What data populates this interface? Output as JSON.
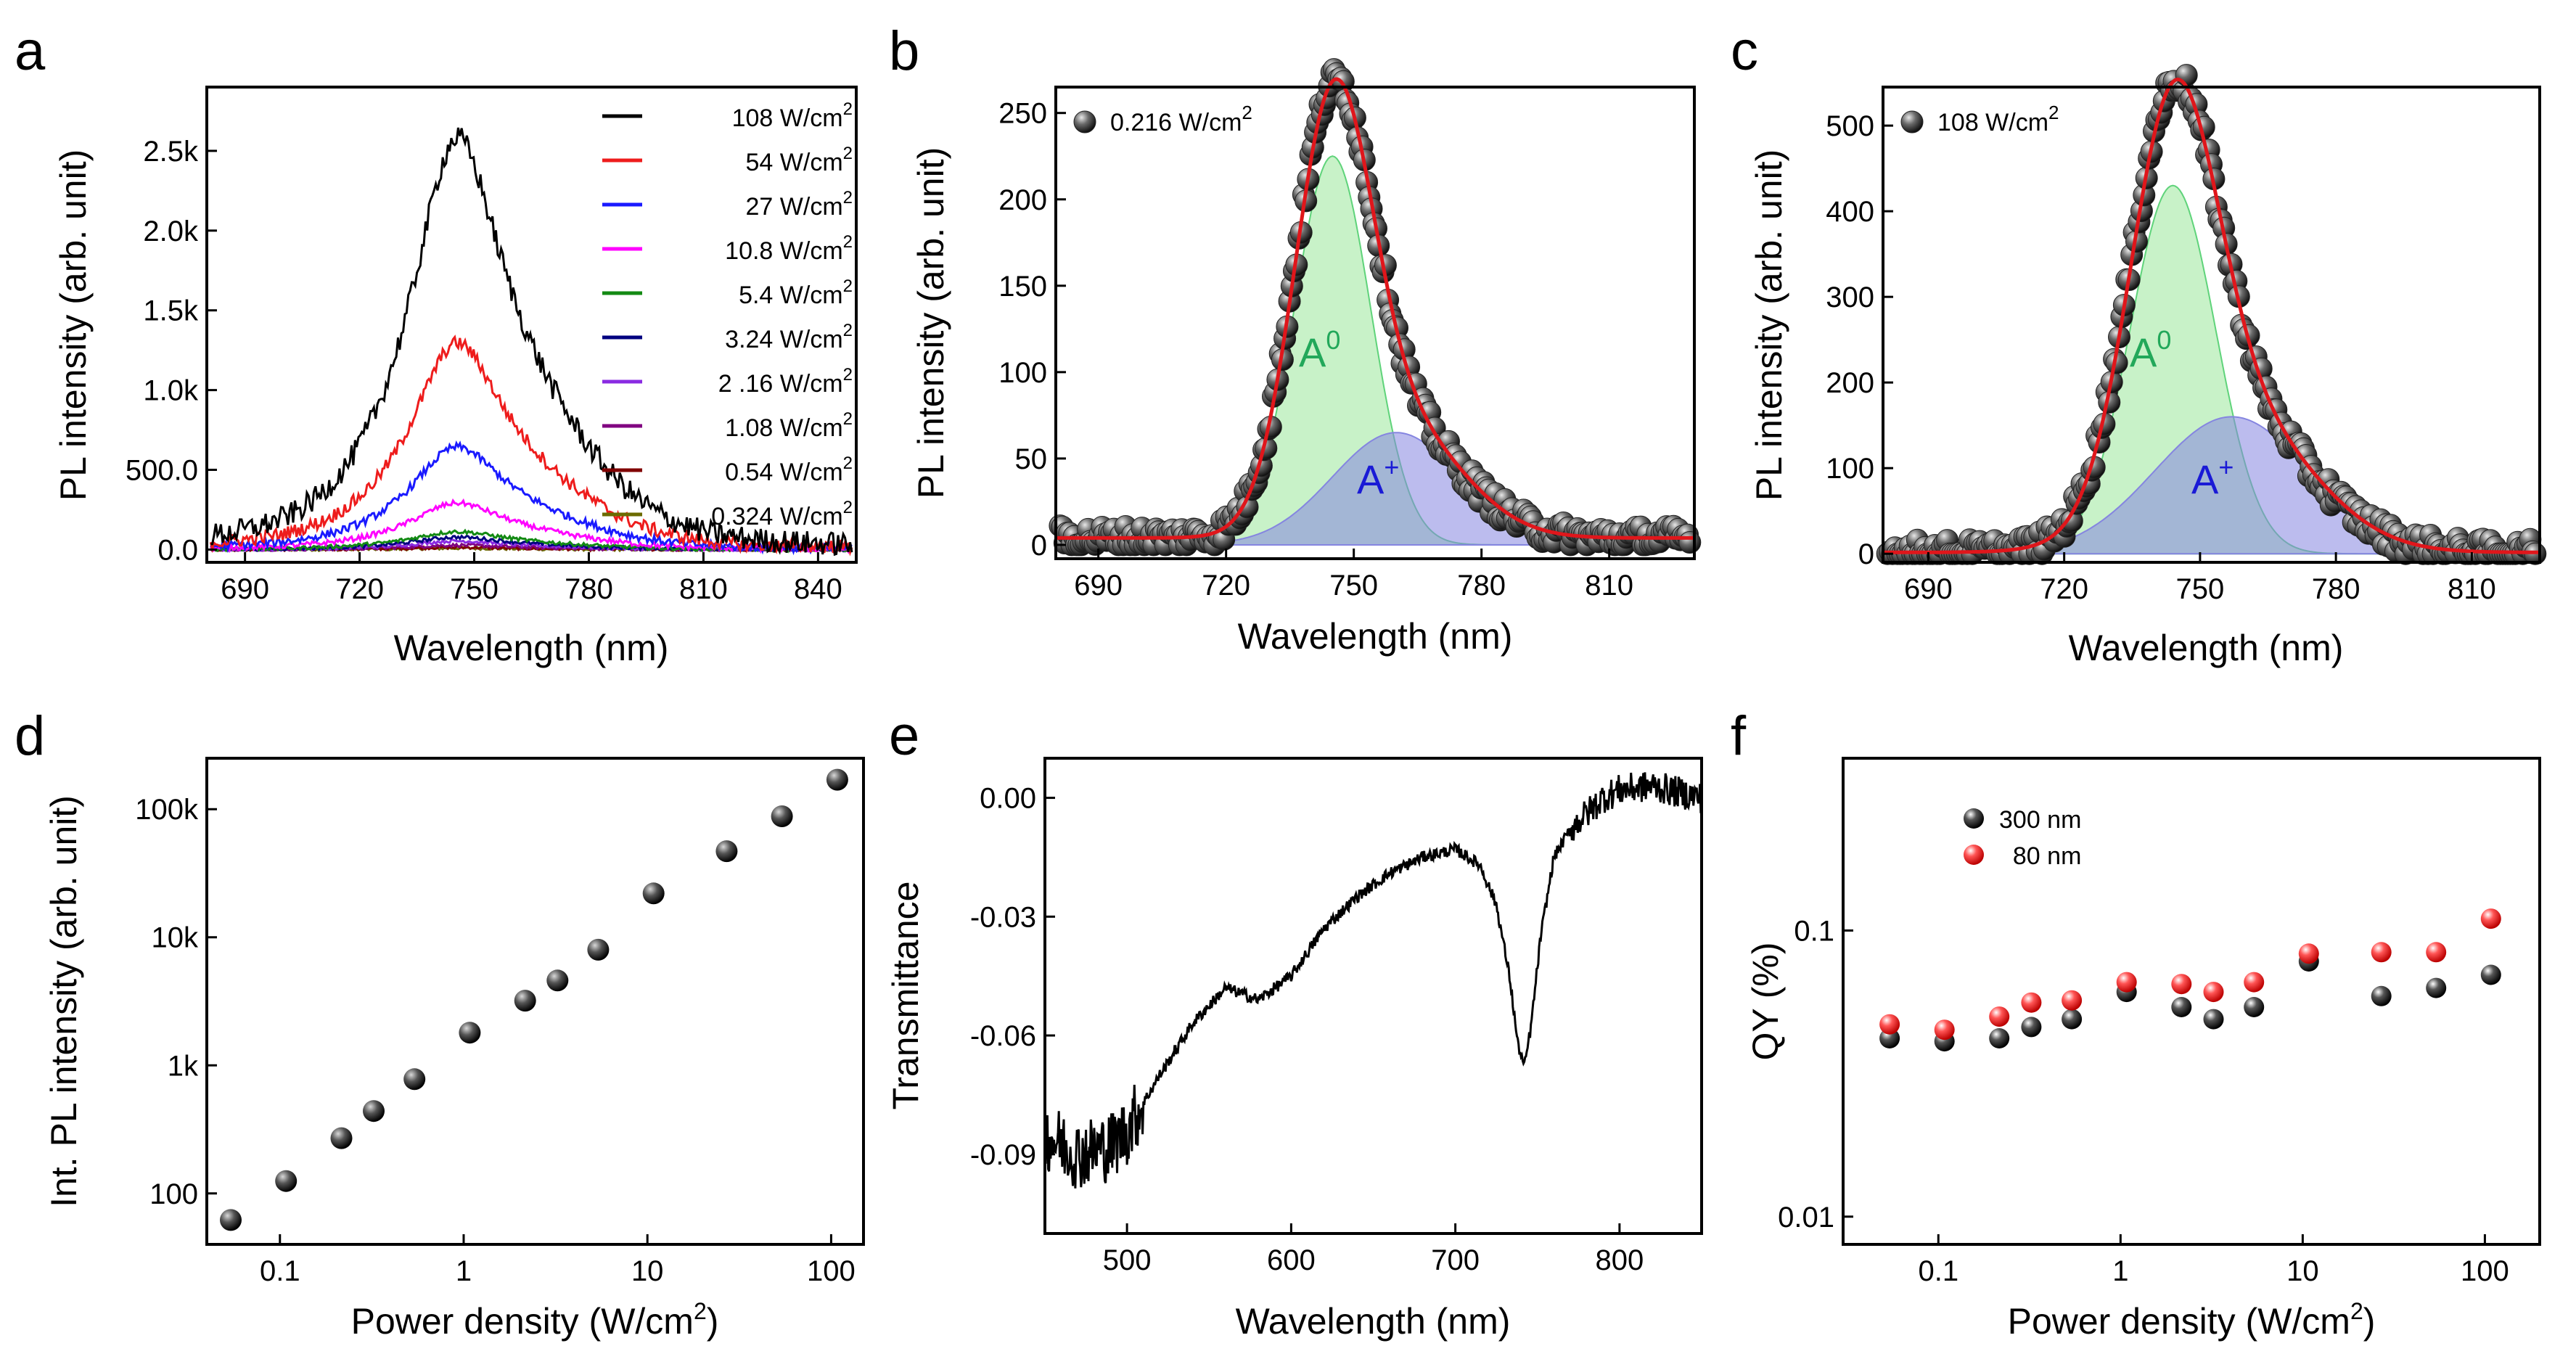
{
  "colors": {
    "axis": "#000000",
    "fit_total": "#e0161b",
    "fit_a0_fill": "#9be89b",
    "fit_a0_stroke": "#5fd37a",
    "fit_aplus_fill": "#8585e0",
    "label_a0": "#22a85a",
    "label_aplus": "#1a1ad6",
    "qy_300nm": "#000000",
    "qy_80nm": "#ee1c1c"
  },
  "chart_data": [
    {
      "panel": "a",
      "type": "line",
      "xlabel": "Wavelength (nm)",
      "ylabel": "PL intensity (arb. unit)",
      "xlim": [
        680,
        850
      ],
      "ylim": [
        -80,
        2900
      ],
      "x_ticks": [
        690,
        720,
        750,
        780,
        810,
        840
      ],
      "y_ticks": [
        {
          "value": 0,
          "label": "0.0"
        },
        {
          "value": 500,
          "label": "500.0"
        },
        {
          "value": 1000,
          "label": "1.0k"
        },
        {
          "value": 1500,
          "label": "1.5k"
        },
        {
          "value": 2000,
          "label": "2.0k"
        },
        {
          "value": 2500,
          "label": "2.5k"
        }
      ],
      "series": [
        {
          "name": "108",
          "unit": "W/cm",
          "sup": "2",
          "color": "#000000",
          "peak": 2650,
          "center": 745,
          "width": 15.5
        },
        {
          "name": "54",
          "unit": "W/cm",
          "sup": "2",
          "color": "#ee1c1c",
          "peak": 1330,
          "center": 745,
          "width": 15.5
        },
        {
          "name": "27",
          "unit": "W/cm",
          "sup": "2",
          "color": "#1a1aff",
          "peak": 660,
          "center": 745,
          "width": 15.5
        },
        {
          "name": "10.8",
          "unit": "W/cm",
          "sup": "2",
          "color": "#ff00ff",
          "peak": 300,
          "center": 745,
          "width": 15.5
        },
        {
          "name": "5.4",
          "unit": "W/cm",
          "sup": "2",
          "color": "#138a13",
          "peak": 115,
          "center": 745,
          "width": 15.5
        },
        {
          "name": "3.24",
          "unit": "W/cm",
          "sup": "2",
          "color": "#000080",
          "peak": 80,
          "center": 745,
          "width": 15.5
        },
        {
          "name": "2 .16",
          "unit": "W/cm",
          "sup": "2",
          "color": "#8a2be2",
          "peak": 55,
          "center": 745,
          "width": 15.5
        },
        {
          "name": "1.08",
          "unit": "W/cm",
          "sup": "2",
          "color": "#800080",
          "peak": 28,
          "center": 745,
          "width": 15.5
        },
        {
          "name": "0.54",
          "unit": "W/cm",
          "sup": "2",
          "color": "#800000",
          "peak": 14,
          "center": 745,
          "width": 15.5
        },
        {
          "name": "0.324",
          "unit": "W/cm",
          "sup": "2",
          "color": "#6b6b00",
          "peak": 9,
          "center": 745,
          "width": 15.5
        }
      ]
    },
    {
      "panel": "b",
      "type": "scatter",
      "xlabel": "Wavelength (nm)",
      "ylabel": "PL intensity (arb. unit)",
      "xlim": [
        680,
        830
      ],
      "ylim": [
        -8,
        265
      ],
      "x_ticks": [
        690,
        720,
        750,
        780,
        810
      ],
      "y_ticks": [
        {
          "value": 0,
          "label": "0"
        },
        {
          "value": 50,
          "label": "50"
        },
        {
          "value": 100,
          "label": "100"
        },
        {
          "value": 150,
          "label": "150"
        },
        {
          "value": 200,
          "label": "200"
        },
        {
          "value": 250,
          "label": "250"
        }
      ],
      "legend": {
        "label": "0.216 W/cm",
        "sup": "2"
      },
      "a0": {
        "label": "A",
        "sup": "0",
        "center": 745,
        "amplitude": 225,
        "width": 9.0
      },
      "aplus": {
        "label": "A",
        "sup": "+",
        "center": 760,
        "amplitude": 65,
        "width": 15.0
      },
      "baseline": 10
    },
    {
      "panel": "c",
      "type": "scatter",
      "xlabel": "Wavelength (nm)",
      "ylabel": "PL intensity (arb. unit)",
      "xlim": [
        680,
        825
      ],
      "ylim": [
        -10,
        545
      ],
      "x_ticks": [
        690,
        720,
        750,
        780,
        810
      ],
      "y_ticks": [
        {
          "value": 0,
          "label": "0"
        },
        {
          "value": 100,
          "label": "100"
        },
        {
          "value": 200,
          "label": "200"
        },
        {
          "value": 300,
          "label": "300"
        },
        {
          "value": 400,
          "label": "400"
        },
        {
          "value": 500,
          "label": "500"
        }
      ],
      "legend": {
        "label": "108 W/cm",
        "sup": "2"
      },
      "a0": {
        "label": "A",
        "sup": "0",
        "center": 744,
        "amplitude": 430,
        "width": 9.5
      },
      "aplus": {
        "label": "A",
        "sup": "+",
        "center": 757,
        "amplitude": 160,
        "width": 17.0
      },
      "baseline": 4
    },
    {
      "panel": "d",
      "type": "scatter",
      "scale": "log-log",
      "xlabel": "Power density (W/cm",
      "xlabel_sup": "2",
      "xlabel_end": ")",
      "ylabel": "Int. PL intensity (arb. unit)",
      "xlim": [
        0.04,
        150
      ],
      "ylim": [
        40,
        250000
      ],
      "x_ticks": [
        {
          "value": 0.1,
          "label": "0.1"
        },
        {
          "value": 1,
          "label": "1"
        },
        {
          "value": 10,
          "label": "10"
        },
        {
          "value": 100,
          "label": "100"
        }
      ],
      "y_ticks": [
        {
          "value": 100,
          "label": "100"
        },
        {
          "value": 1000,
          "label": "1k"
        },
        {
          "value": 10000,
          "label": "10k"
        },
        {
          "value": 100000,
          "label": "100k"
        }
      ],
      "x": [
        0.054,
        0.108,
        0.216,
        0.324,
        0.54,
        1.08,
        2.16,
        3.24,
        5.4,
        10.8,
        27,
        54,
        108
      ],
      "y": [
        62,
        125,
        270,
        440,
        780,
        1800,
        3200,
        4600,
        8000,
        22000,
        47000,
        88000,
        170000
      ]
    },
    {
      "panel": "e",
      "type": "line",
      "xlabel": "Wavelength (nm)",
      "ylabel": "Transmittance",
      "xlim": [
        450,
        850
      ],
      "ylim": [
        -0.11,
        0.01
      ],
      "x_ticks": [
        500,
        600,
        700,
        800
      ],
      "y_ticks": [
        {
          "value": 0,
          "label": "0.00"
        },
        {
          "value": -0.03,
          "label": "-0.03"
        },
        {
          "value": -0.06,
          "label": "-0.06"
        },
        {
          "value": -0.09,
          "label": "-0.09"
        }
      ],
      "x_anchor": [
        450,
        470,
        490,
        500,
        520,
        540,
        560,
        580,
        600,
        620,
        640,
        660,
        680,
        700,
        715,
        725,
        733,
        738,
        742,
        746,
        752,
        760,
        770,
        780,
        790,
        800,
        820,
        850
      ],
      "y_anchor": [
        -0.085,
        -0.09,
        -0.088,
        -0.084,
        -0.07,
        -0.057,
        -0.048,
        -0.051,
        -0.045,
        -0.033,
        -0.025,
        -0.019,
        -0.015,
        -0.013,
        -0.017,
        -0.027,
        -0.045,
        -0.062,
        -0.068,
        -0.058,
        -0.035,
        -0.015,
        -0.008,
        -0.004,
        0.0,
        0.002,
        0.003,
        0.0
      ]
    },
    {
      "panel": "f",
      "type": "scatter",
      "scale": "log-log",
      "xlabel": "Power density (W/cm",
      "xlabel_sup": "2",
      "xlabel_end": ")",
      "ylabel": "QY (%)",
      "xlim": [
        0.03,
        200
      ],
      "ylim": [
        0.008,
        0.4
      ],
      "x_ticks": [
        {
          "value": 0.1,
          "label": "0.1"
        },
        {
          "value": 1,
          "label": "1"
        },
        {
          "value": 10,
          "label": "10"
        },
        {
          "value": 100,
          "label": "100"
        }
      ],
      "y_ticks": [
        {
          "value": 0.01,
          "label": "0.01"
        },
        {
          "value": 0.1,
          "label": "0.1"
        }
      ],
      "series": [
        {
          "name": "300 nm",
          "color": "#000000",
          "x": [
            0.054,
            0.108,
            0.216,
            0.324,
            0.54,
            1.08,
            2.16,
            3.24,
            5.4,
            10.8,
            27,
            54,
            108
          ],
          "y": [
            0.042,
            0.041,
            0.042,
            0.046,
            0.049,
            0.061,
            0.054,
            0.049,
            0.054,
            0.078,
            0.059,
            0.063,
            0.07
          ]
        },
        {
          "name": "  80 nm",
          "color": "#ee1c1c",
          "x": [
            0.054,
            0.108,
            0.216,
            0.324,
            0.54,
            1.08,
            2.16,
            3.24,
            5.4,
            10.8,
            27,
            54,
            108
          ],
          "y": [
            0.047,
            0.045,
            0.05,
            0.056,
            0.057,
            0.066,
            0.065,
            0.061,
            0.066,
            0.083,
            0.084,
            0.084,
            0.11
          ]
        }
      ]
    }
  ]
}
